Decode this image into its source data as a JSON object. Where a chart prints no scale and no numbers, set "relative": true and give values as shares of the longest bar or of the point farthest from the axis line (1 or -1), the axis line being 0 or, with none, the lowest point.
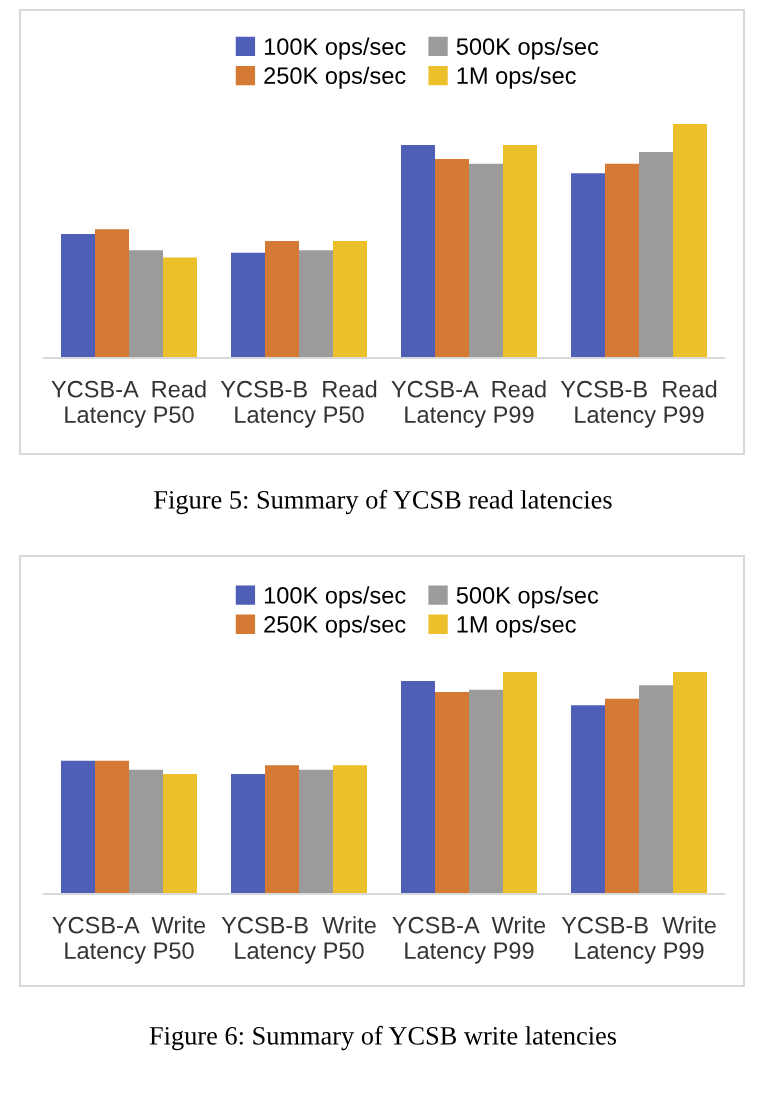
{
  "chart_data": [
    {
      "type": "bar",
      "relative": true,
      "legend": "top",
      "grid": false,
      "categories": [
        "YCSB-A  Read\nLatency P50",
        "YCSB-B  Read\nLatency P50",
        "YCSB-A  Read\nLatency P99",
        "YCSB-B  Read\nLatency P99"
      ],
      "series": [
        {
          "name": "100K ops/sec",
          "color": "#4f5fb8",
          "values": [
            0.53,
            0.45,
            0.91,
            0.79
          ]
        },
        {
          "name": "250K ops/sec",
          "color": "#d47a35",
          "values": [
            0.55,
            0.5,
            0.85,
            0.83
          ]
        },
        {
          "name": "500K ops/sec",
          "color": "#9b9b9b",
          "values": [
            0.46,
            0.46,
            0.83,
            0.88
          ]
        },
        {
          "name": "1M ops/sec",
          "color": "#ecc02b",
          "values": [
            0.43,
            0.5,
            0.91,
            1
          ]
        }
      ],
      "annotations": [
        "Figure 5: Summary of YCSB read latencies"
      ]
    },
    {
      "type": "bar",
      "relative": true,
      "legend": "top",
      "grid": false,
      "categories": [
        "YCSB-A  Write\nLatency P50",
        "YCSB-B  Write\nLatency P50",
        "YCSB-A  Write\nLatency P99",
        "YCSB-B  Write\nLatency P99"
      ],
      "series": [
        {
          "name": "100K ops/sec",
          "color": "#4f5fb8",
          "values": [
            0.6,
            0.54,
            0.96,
            0.85
          ]
        },
        {
          "name": "250K ops/sec",
          "color": "#d47a35",
          "values": [
            0.6,
            0.58,
            0.91,
            0.88
          ]
        },
        {
          "name": "500K ops/sec",
          "color": "#9b9b9b",
          "values": [
            0.56,
            0.56,
            0.92,
            0.94
          ]
        },
        {
          "name": "1M ops/sec",
          "color": "#ecc02b",
          "values": [
            0.54,
            0.58,
            1,
            1
          ]
        }
      ],
      "annotations": [
        "Figure 6: Summary of YCSB write latencies"
      ]
    }
  ]
}
